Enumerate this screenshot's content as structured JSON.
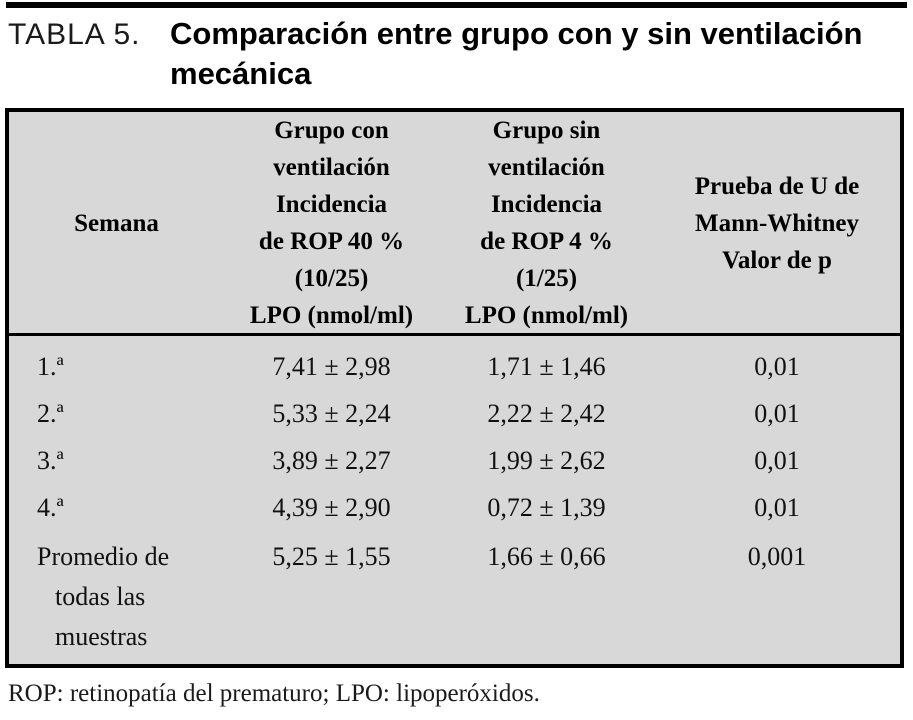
{
  "title": {
    "label": "TABLA 5.",
    "lines": [
      "Comparación entre grupo con y sin ventilación",
      "mecánica"
    ]
  },
  "table": {
    "header": {
      "col1_lines": [
        "Semana"
      ],
      "col2_lines": [
        "Grupo con",
        "ventilación",
        "Incidencia",
        "de ROP 40 %",
        "(10/25)",
        "LPO (nmol/ml)"
      ],
      "col3_lines": [
        "Grupo sin",
        "ventilación",
        "Incidencia",
        "de ROP 4 %",
        "(1/25)",
        "LPO (nmol/ml)"
      ],
      "col4_lines": [
        "Prueba de U de",
        "Mann-Whitney",
        "Valor de p"
      ]
    },
    "rows": [
      {
        "week": "1.ª",
        "values": [
          "7,41 ± 2,98",
          "1,71 ± 1,46",
          "0,01"
        ]
      },
      {
        "week": "2.ª",
        "values": [
          "5,33 ± 2,24",
          "2,22 ± 2,42",
          "0,01"
        ]
      },
      {
        "week": "3.ª",
        "values": [
          "3,89 ± 2,27",
          "1,99 ± 2,62",
          "0,01"
        ]
      },
      {
        "week": "4.ª",
        "values": [
          "4,39 ± 2,90",
          "0,72 ± 1,39",
          "0,01"
        ]
      }
    ],
    "last_row": {
      "week_lines": [
        "Promedio de",
        "todas las",
        "muestras"
      ],
      "values": [
        "5,25 ± 1,55",
        "1,66 ± 0,66",
        "0,001"
      ]
    }
  },
  "footnote": "ROP: retinopatía del prematuro; LPO: lipoperóxidos.",
  "colors": {
    "table_background": "#d8d8d8",
    "rule": "#000000"
  }
}
